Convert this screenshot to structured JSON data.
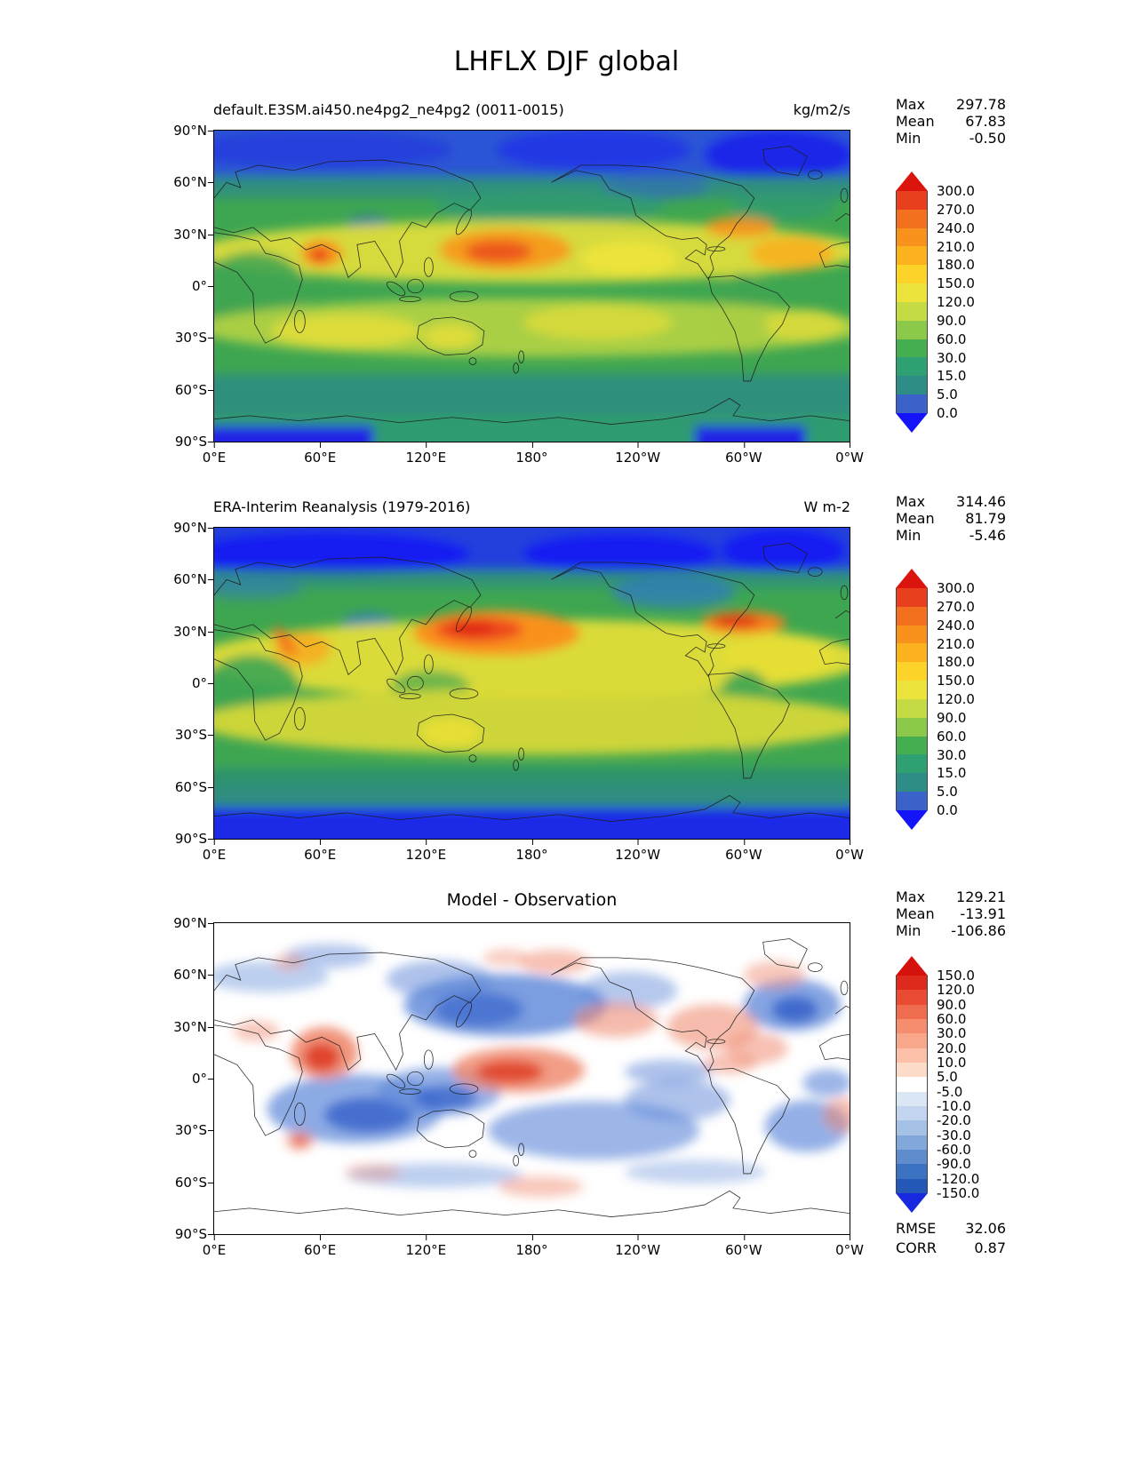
{
  "figure_title": "LHFLX DJF global",
  "axes": {
    "lat_ticks": [
      "90°N",
      "60°N",
      "30°N",
      "0°",
      "30°S",
      "60°S",
      "90°S"
    ],
    "lon_ticks": [
      "0°E",
      "60°E",
      "120°E",
      "180°",
      "120°W",
      "60°W",
      "0°W"
    ]
  },
  "panels": [
    {
      "id": "model",
      "title": "default.E3SM.ai450.ne4pg2_ne4pg2 (0011-0015)",
      "units": "kg/m2/s",
      "stats": [
        {
          "label": "Max",
          "value": "297.78"
        },
        {
          "label": "Mean",
          "value": "67.83"
        },
        {
          "label": "Min",
          "value": "-0.50"
        }
      ],
      "colorbar": {
        "labels": [
          "300.0",
          "270.0",
          "240.0",
          "210.0",
          "180.0",
          "150.0",
          "120.0",
          "90.0",
          "60.0",
          "30.0",
          "15.0",
          "5.0",
          "0.0"
        ],
        "colors": [
          "#e8401f",
          "#f3701f",
          "#f9921c",
          "#fcb11e",
          "#fdd32a",
          "#ece43c",
          "#c6db43",
          "#8cc84a",
          "#44ae51",
          "#2fa071",
          "#2d8d86",
          "#3a62c8"
        ],
        "over_color": "#dc140e",
        "under_color": "#1414fa"
      }
    },
    {
      "id": "observation",
      "title": "ERA-Interim Reanalysis (1979-2016)",
      "units": "W m-2",
      "stats": [
        {
          "label": "Max",
          "value": "314.46"
        },
        {
          "label": "Mean",
          "value": "81.79"
        },
        {
          "label": "Min",
          "value": "-5.46"
        }
      ],
      "colorbar": {
        "labels": [
          "300.0",
          "270.0",
          "240.0",
          "210.0",
          "180.0",
          "150.0",
          "120.0",
          "90.0",
          "60.0",
          "30.0",
          "15.0",
          "5.0",
          "0.0"
        ],
        "colors": [
          "#e8401f",
          "#f3701f",
          "#f9921c",
          "#fcb11e",
          "#fdd32a",
          "#ece43c",
          "#c6db43",
          "#8cc84a",
          "#44ae51",
          "#2fa071",
          "#2d8d86",
          "#3a62c8"
        ],
        "over_color": "#dc140e",
        "under_color": "#1414fa"
      }
    },
    {
      "id": "difference",
      "title": "Model - Observation",
      "units": "",
      "stats": [
        {
          "label": "Max",
          "value": "129.21"
        },
        {
          "label": "Mean",
          "value": "-13.91"
        },
        {
          "label": "Min",
          "value": "-106.86"
        }
      ],
      "colorbar": {
        "labels": [
          "150.0",
          "120.0",
          "90.0",
          "60.0",
          "30.0",
          "20.0",
          "10.0",
          "5.0",
          "-5.0",
          "-10.0",
          "-20.0",
          "-30.0",
          "-60.0",
          "-90.0",
          "-120.0",
          "-150.0"
        ],
        "colors": [
          "#dd2a1c",
          "#e94c33",
          "#f06c4e",
          "#f58d6e",
          "#f9a78a",
          "#fcc1a8",
          "#fddbc9",
          "#ffffff",
          "#dbe7f5",
          "#c2d4ee",
          "#a6c1e6",
          "#82a7da",
          "#5e8ccd",
          "#3c72c2",
          "#2458b8"
        ],
        "over_color": "#d5120e",
        "under_color": "#1828e0"
      }
    }
  ],
  "footer_stats": [
    {
      "label": "RMSE",
      "value": "32.06"
    },
    {
      "label": "CORR",
      "value": "0.87"
    }
  ],
  "chart_data": [
    {
      "type": "heatmap",
      "subtype": "filled-contour global latitude-longitude map",
      "panel": "model",
      "title": "default.E3SM.ai450.ne4pg2_ne4pg2 (0011-0015)",
      "variable": "LHFLX",
      "season": "DJF",
      "region": "global",
      "units": "kg/m2/s",
      "stats": {
        "max": 297.78,
        "mean": 67.83,
        "min": -0.5
      },
      "contour_levels": [
        0.0,
        5.0,
        15.0,
        30.0,
        60.0,
        90.0,
        120.0,
        150.0,
        180.0,
        210.0,
        240.0,
        270.0,
        300.0
      ],
      "x_tick_labels": [
        "0°E",
        "60°E",
        "120°E",
        "180°",
        "120°W",
        "60°W",
        "0°W"
      ],
      "y_tick_labels": [
        "90°N",
        "60°N",
        "30°N",
        "0°",
        "30°S",
        "60°S",
        "90°S"
      ],
      "legend_position": "right"
    },
    {
      "type": "heatmap",
      "subtype": "filled-contour global latitude-longitude map",
      "panel": "observation",
      "title": "ERA-Interim Reanalysis (1979-2016)",
      "variable": "LHFLX",
      "season": "DJF",
      "region": "global",
      "units": "W m-2",
      "stats": {
        "max": 314.46,
        "mean": 81.79,
        "min": -5.46
      },
      "contour_levels": [
        0.0,
        5.0,
        15.0,
        30.0,
        60.0,
        90.0,
        120.0,
        150.0,
        180.0,
        210.0,
        240.0,
        270.0,
        300.0
      ],
      "x_tick_labels": [
        "0°E",
        "60°E",
        "120°E",
        "180°",
        "120°W",
        "60°W",
        "0°W"
      ],
      "y_tick_labels": [
        "90°N",
        "60°N",
        "30°N",
        "0°",
        "30°S",
        "60°S",
        "90°S"
      ],
      "legend_position": "right"
    },
    {
      "type": "heatmap",
      "subtype": "filled-contour global latitude-longitude difference map",
      "panel": "difference",
      "title": "Model - Observation",
      "stats": {
        "max": 129.21,
        "mean": -13.91,
        "min": -106.86
      },
      "rmse": 32.06,
      "corr": 0.87,
      "contour_levels": [
        -150,
        -120,
        -90,
        -60,
        -30,
        -20,
        -10,
        -5,
        5,
        10,
        20,
        30,
        60,
        90,
        120,
        150
      ],
      "x_tick_labels": [
        "0°E",
        "60°E",
        "120°E",
        "180°",
        "120°W",
        "60°W",
        "0°W"
      ],
      "y_tick_labels": [
        "90°N",
        "60°N",
        "30°N",
        "0°",
        "30°S",
        "60°S",
        "90°S"
      ],
      "legend_position": "right"
    }
  ]
}
